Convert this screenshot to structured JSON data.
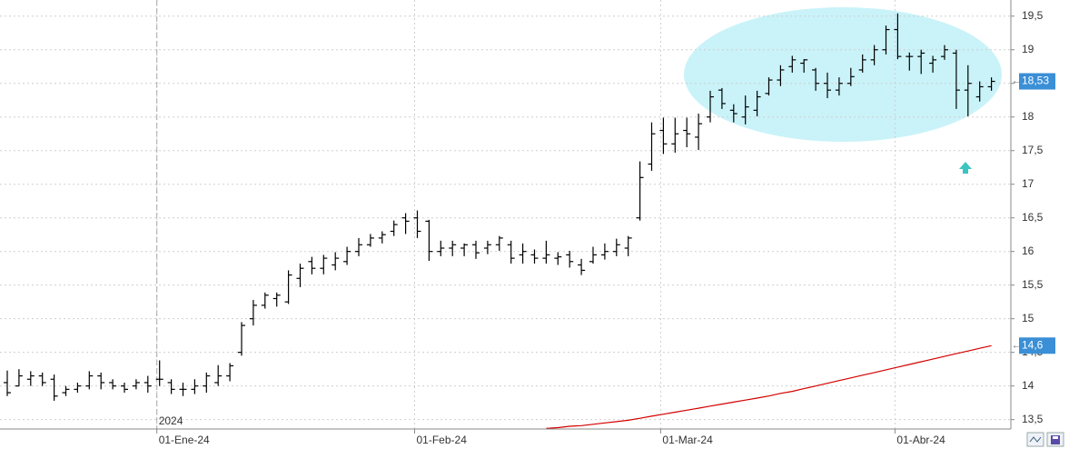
{
  "chart_data": {
    "type": "ohlc",
    "categories": [
      null,
      null,
      null,
      null,
      null,
      null,
      null,
      null,
      null,
      null,
      null,
      null,
      null,
      "01-Ene-24",
      null,
      null,
      null,
      null,
      null,
      null,
      null,
      null,
      null,
      null,
      null,
      null,
      null,
      null,
      null,
      null,
      null,
      null,
      null,
      null,
      null,
      "01-Feb-24",
      null,
      null,
      null,
      null,
      null,
      null,
      null,
      null,
      null,
      null,
      null,
      null,
      null,
      null,
      null,
      null,
      null,
      null,
      null,
      null,
      "01-Mar-24",
      null,
      null,
      null,
      null,
      null,
      null,
      null,
      null,
      null,
      null,
      null,
      null,
      null,
      null,
      null,
      null,
      null,
      null,
      null,
      "01-Abr-24",
      null,
      null,
      null,
      null,
      null,
      null,
      null,
      null
    ],
    "year_label": "2024",
    "ylim": [
      13.36,
      19.74
    ],
    "yticks": [
      {
        "value": 13.5,
        "label": "13,5"
      },
      14,
      {
        "value": 14.5,
        "label": "14,5"
      },
      15,
      {
        "value": 15.5,
        "label": "15,5"
      },
      16,
      {
        "value": 16.5,
        "label": "16,5"
      },
      17,
      {
        "value": 17.5,
        "label": "17,5"
      },
      18,
      {
        "value": 18.5,
        "label": "18,5"
      },
      19,
      {
        "value": 19.5,
        "label": "19,5"
      }
    ],
    "grid": true,
    "series": [
      {
        "color": "#000000",
        "open": [
          14.05,
          14.0,
          14.1,
          14.15,
          14.1,
          13.9,
          13.95,
          14.0,
          14.15,
          14.05,
          14.0,
          14.0,
          14.05,
          14.1,
          14.05,
          13.95,
          13.95,
          14.0,
          14.05,
          14.15,
          14.5,
          15.0,
          15.2,
          15.3,
          15.25,
          15.6,
          15.85,
          15.75,
          15.8,
          15.85,
          16.0,
          16.1,
          16.2,
          16.3,
          16.5,
          16.5,
          16.45,
          16.0,
          16.05,
          16.05,
          16.1,
          16.05,
          16.1,
          16.1,
          15.95,
          15.95,
          15.9,
          15.9,
          15.95,
          15.8,
          15.85,
          15.95,
          16.0,
          16.05,
          16.5,
          17.3,
          17.8,
          17.6,
          17.8,
          17.7,
          18.0,
          18.4,
          18.1,
          18.0,
          18.1,
          18.35,
          18.55,
          18.75,
          18.8,
          18.7,
          18.5,
          18.4,
          18.5,
          18.7,
          18.85,
          19.0,
          19.3,
          18.9,
          18.9,
          18.8,
          18.9,
          18.95,
          18.4,
          18.3,
          18.45
        ],
        "high": [
          14.23,
          14.25,
          14.22,
          14.2,
          14.17,
          14.0,
          14.05,
          14.22,
          14.2,
          14.1,
          14.05,
          14.1,
          14.15,
          14.38,
          14.1,
          14.05,
          14.1,
          14.2,
          14.31,
          14.34,
          14.95,
          15.28,
          15.39,
          15.39,
          15.72,
          15.82,
          15.92,
          15.95,
          15.99,
          16.07,
          16.2,
          16.26,
          16.3,
          16.46,
          16.57,
          16.61,
          16.47,
          16.16,
          16.16,
          16.12,
          16.16,
          16.16,
          16.23,
          16.16,
          16.12,
          16.03,
          16.16,
          15.99,
          16.01,
          15.89,
          16.07,
          16.12,
          16.19,
          16.23,
          17.34,
          17.92,
          17.99,
          17.99,
          17.99,
          18.05,
          18.39,
          18.43,
          18.19,
          18.32,
          18.39,
          18.59,
          18.77,
          18.91,
          18.86,
          18.73,
          18.66,
          18.59,
          18.73,
          18.93,
          19.07,
          19.36,
          19.54,
          18.96,
          19.0,
          18.91,
          19.07,
          19.0,
          18.77,
          18.53,
          18.59
        ],
        "low": [
          13.85,
          14.0,
          14.0,
          14.0,
          13.78,
          13.85,
          13.9,
          13.95,
          13.95,
          13.95,
          13.9,
          13.95,
          13.9,
          14.0,
          13.88,
          13.85,
          13.88,
          13.9,
          14.0,
          14.07,
          14.45,
          14.9,
          15.15,
          15.18,
          15.22,
          15.47,
          15.66,
          15.66,
          15.72,
          15.8,
          15.93,
          16.07,
          16.12,
          16.23,
          16.26,
          16.2,
          15.86,
          15.93,
          15.93,
          15.93,
          15.89,
          15.96,
          16.01,
          15.82,
          15.82,
          15.82,
          15.82,
          15.8,
          15.76,
          15.65,
          15.82,
          15.88,
          15.93,
          15.93,
          16.46,
          17.2,
          17.45,
          17.47,
          17.55,
          17.51,
          17.92,
          18.12,
          17.92,
          17.89,
          18.01,
          18.32,
          18.46,
          18.66,
          18.66,
          18.39,
          18.28,
          18.32,
          18.46,
          18.66,
          18.77,
          18.93,
          18.86,
          18.69,
          18.64,
          18.66,
          18.85,
          18.12,
          18.01,
          18.23,
          18.39
        ],
        "close": [
          13.9,
          14.15,
          14.15,
          14.05,
          13.85,
          13.95,
          14.0,
          14.15,
          14.05,
          14.0,
          13.95,
          14.05,
          14.0,
          14.1,
          13.95,
          13.95,
          14.0,
          14.15,
          14.15,
          14.3,
          14.9,
          15.2,
          15.35,
          15.35,
          15.65,
          15.75,
          15.75,
          15.9,
          15.9,
          16.0,
          16.1,
          16.2,
          16.25,
          16.4,
          16.45,
          16.3,
          16.0,
          16.05,
          16.1,
          16.1,
          15.98,
          16.1,
          16.2,
          15.9,
          16.0,
          15.9,
          15.95,
          15.92,
          15.85,
          15.72,
          15.95,
          16.0,
          16.1,
          16.2,
          17.1,
          17.75,
          17.6,
          17.75,
          17.75,
          17.9,
          18.3,
          18.2,
          18.05,
          18.15,
          18.3,
          18.55,
          18.7,
          18.85,
          18.85,
          18.5,
          18.4,
          18.5,
          18.6,
          18.85,
          19.0,
          19.3,
          18.9,
          18.9,
          18.95,
          18.85,
          19.0,
          18.4,
          18.5,
          18.45,
          18.53
        ]
      }
    ],
    "moving_average": {
      "color": "#d40000",
      "values": [
        null,
        null,
        null,
        null,
        null,
        null,
        null,
        null,
        null,
        null,
        null,
        null,
        null,
        null,
        null,
        null,
        null,
        null,
        null,
        null,
        null,
        null,
        null,
        null,
        null,
        null,
        null,
        null,
        null,
        null,
        null,
        null,
        null,
        null,
        null,
        null,
        null,
        null,
        null,
        null,
        null,
        null,
        null,
        null,
        null,
        null,
        13.37,
        13.38,
        13.4,
        13.41,
        13.43,
        13.45,
        13.47,
        13.49,
        13.52,
        13.55,
        13.58,
        13.61,
        13.64,
        13.67,
        13.7,
        13.73,
        13.76,
        13.79,
        13.82,
        13.85,
        13.89,
        13.92,
        13.96,
        14.0,
        14.04,
        14.08,
        14.12,
        14.16,
        14.2,
        14.24,
        14.28,
        14.32,
        14.36,
        14.4,
        14.44,
        14.48,
        14.52,
        14.56,
        14.6
      ]
    },
    "price_tags": [
      {
        "value": 18.53,
        "label": "18,53",
        "color": "#3a8fd6"
      },
      {
        "value": 14.6,
        "label": "14,6",
        "color": "#3a8fd6"
      }
    ]
  }
}
